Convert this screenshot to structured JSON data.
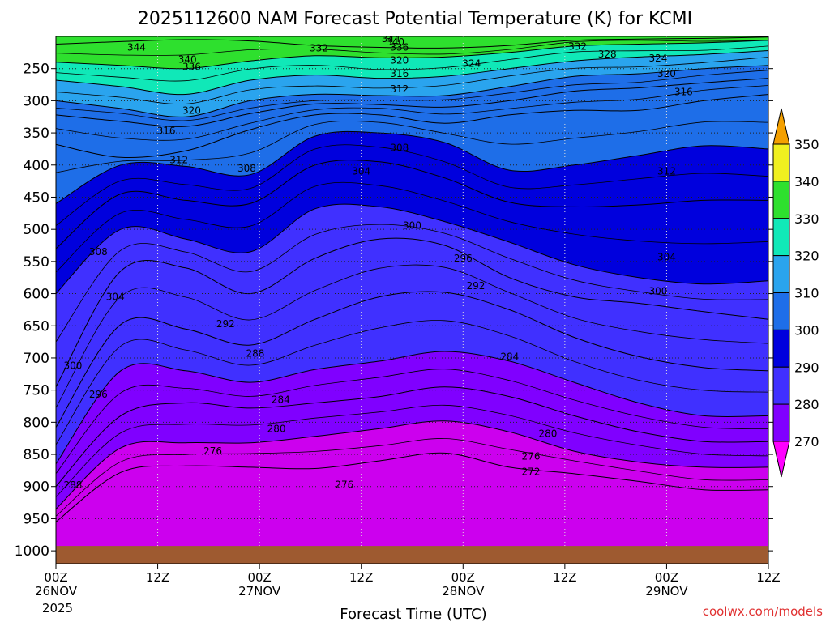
{
  "chart_data": {
    "type": "contour",
    "title": "2025112600 NAM Forecast Potential Temperature (K) for KCMI",
    "xlabel": "Forecast Time (UTC)",
    "ylabel": "",
    "credit": "coolwx.com/models",
    "year_label": "2025",
    "x_range_hours": [
      0,
      84
    ],
    "x_ticks": [
      {
        "hour": 0,
        "time": "00Z",
        "date": "26NOV"
      },
      {
        "hour": 12,
        "time": "12Z",
        "date": ""
      },
      {
        "hour": 24,
        "time": "00Z",
        "date": "27NOV"
      },
      {
        "hour": 36,
        "time": "12Z",
        "date": ""
      },
      {
        "hour": 48,
        "time": "00Z",
        "date": "28NOV"
      },
      {
        "hour": 60,
        "time": "12Z",
        "date": ""
      },
      {
        "hour": 72,
        "time": "00Z",
        "date": "29NOV"
      },
      {
        "hour": 84,
        "time": "12Z",
        "date": ""
      }
    ],
    "pressure_range_hpa": [
      200,
      1020
    ],
    "y_ticks": [
      "250",
      "300",
      "350",
      "400",
      "450",
      "500",
      "550",
      "600",
      "650",
      "700",
      "750",
      "800",
      "850",
      "900",
      "950",
      "1000"
    ],
    "colorbar": {
      "levels": [
        "270",
        "280",
        "290",
        "300",
        "310",
        "320",
        "330",
        "340",
        "350"
      ],
      "colors": [
        "#ff00ff",
        "#cc00ee",
        "#8000ff",
        "#4030ff",
        "#0000dd",
        "#1e6ee8",
        "#2aa4ee",
        "#10e8b8",
        "#2ee02e",
        "#f0f020",
        "#f4a000"
      ]
    },
    "contour_interval_K": 2,
    "ground_color": "#9e5a30",
    "isentropes": [
      {
        "theta": 344,
        "pressure_hpa": [
          212,
          208,
          205,
          207,
          214,
          217,
          218,
          214,
          206,
          204,
          203,
          201
        ]
      },
      {
        "theta": 336,
        "pressure_hpa": [
          240,
          245,
          250,
          238,
          230,
          233,
          232,
          225,
          215,
          212,
          210,
          206
        ]
      },
      {
        "theta": 328,
        "pressure_hpa": [
          268,
          278,
          290,
          268,
          260,
          265,
          262,
          250,
          238,
          232,
          228,
          222
        ]
      },
      {
        "theta": 320,
        "pressure_hpa": [
          300,
          312,
          325,
          300,
          290,
          292,
          292,
          278,
          262,
          258,
          250,
          245
        ]
      },
      {
        "theta": 316,
        "pressure_hpa": [
          322,
          332,
          340,
          320,
          305,
          306,
          310,
          300,
          285,
          280,
          272,
          265
        ]
      },
      {
        "theta": 312,
        "pressure_hpa": [
          368,
          388,
          378,
          345,
          322,
          322,
          335,
          322,
          315,
          315,
          300,
          290
        ]
      },
      {
        "theta": 308,
        "pressure_hpa": [
          460,
          400,
          402,
          415,
          355,
          350,
          365,
          408,
          400,
          385,
          370,
          375
        ]
      },
      {
        "theta": 304,
        "pressure_hpa": [
          530,
          445,
          455,
          460,
          400,
          395,
          420,
          458,
          465,
          462,
          455,
          455
        ]
      },
      {
        "theta": 300,
        "pressure_hpa": [
          600,
          500,
          515,
          535,
          468,
          465,
          488,
          520,
          555,
          575,
          585,
          580
        ]
      },
      {
        "theta": 296,
        "pressure_hpa": [
          745,
          565,
          560,
          600,
          545,
          515,
          525,
          575,
          605,
          615,
          628,
          640
        ]
      },
      {
        "theta": 292,
        "pressure_hpa": [
          808,
          648,
          655,
          680,
          640,
          605,
          598,
          625,
          668,
          698,
          715,
          720
        ]
      },
      {
        "theta": 288,
        "pressure_hpa": [
          865,
          720,
          720,
          738,
          718,
          705,
          690,
          705,
          738,
          770,
          790,
          790
        ]
      },
      {
        "theta": 284,
        "pressure_hpa": [
          900,
          790,
          770,
          778,
          770,
          760,
          745,
          760,
          790,
          815,
          830,
          830
        ]
      },
      {
        "theta": 280,
        "pressure_hpa": [
          935,
          840,
          832,
          832,
          822,
          810,
          798,
          815,
          845,
          862,
          870,
          870
        ]
      },
      {
        "theta": 276,
        "pressure_hpa": [
          955,
          878,
          868,
          870,
          872,
          860,
          848,
          870,
          880,
          892,
          905,
          905
        ]
      }
    ],
    "contour_labels": [
      {
        "text": "344",
        "hour": 9.5,
        "p": 217
      },
      {
        "text": "340",
        "hour": 15.5,
        "p": 236
      },
      {
        "text": "336",
        "hour": 16.0,
        "p": 247
      },
      {
        "text": "320",
        "hour": 16.0,
        "p": 315
      },
      {
        "text": "316",
        "hour": 13.0,
        "p": 347
      },
      {
        "text": "312",
        "hour": 14.5,
        "p": 392
      },
      {
        "text": "308",
        "hour": 5.0,
        "p": 535
      },
      {
        "text": "304",
        "hour": 7.0,
        "p": 605
      },
      {
        "text": "300",
        "hour": 2.0,
        "p": 712
      },
      {
        "text": "296",
        "hour": 5.0,
        "p": 757
      },
      {
        "text": "288",
        "hour": 2.0,
        "p": 898
      },
      {
        "text": "292",
        "hour": 20.0,
        "p": 647
      },
      {
        "text": "288",
        "hour": 23.5,
        "p": 693
      },
      {
        "text": "284",
        "hour": 26.5,
        "p": 765
      },
      {
        "text": "280",
        "hour": 26.0,
        "p": 810
      },
      {
        "text": "276",
        "hour": 18.5,
        "p": 845
      },
      {
        "text": "276",
        "hour": 34.0,
        "p": 897
      },
      {
        "text": "308",
        "hour": 22.5,
        "p": 405
      },
      {
        "text": "304",
        "hour": 36.0,
        "p": 410
      },
      {
        "text": "308",
        "hour": 40.5,
        "p": 373
      },
      {
        "text": "312",
        "hour": 40.5,
        "p": 282
      },
      {
        "text": "316",
        "hour": 40.5,
        "p": 258
      },
      {
        "text": "320",
        "hour": 40.5,
        "p": 237
      },
      {
        "text": "332",
        "hour": 31.0,
        "p": 218
      },
      {
        "text": "336",
        "hour": 40.5,
        "p": 217
      },
      {
        "text": "340",
        "hour": 40.0,
        "p": 209
      },
      {
        "text": "344",
        "hour": 39.5,
        "p": 204
      },
      {
        "text": "300",
        "hour": 42.0,
        "p": 494
      },
      {
        "text": "296",
        "hour": 48.0,
        "p": 545
      },
      {
        "text": "292",
        "hour": 49.5,
        "p": 588
      },
      {
        "text": "324",
        "hour": 49.0,
        "p": 242
      },
      {
        "text": "284",
        "hour": 53.5,
        "p": 698
      },
      {
        "text": "280",
        "hour": 58.0,
        "p": 818
      },
      {
        "text": "276",
        "hour": 56.0,
        "p": 853
      },
      {
        "text": "272",
        "hour": 56.0,
        "p": 877
      },
      {
        "text": "332",
        "hour": 61.5,
        "p": 216
      },
      {
        "text": "328",
        "hour": 65.0,
        "p": 228
      },
      {
        "text": "324",
        "hour": 71.0,
        "p": 234
      },
      {
        "text": "320",
        "hour": 72.0,
        "p": 258
      },
      {
        "text": "316",
        "hour": 74.0,
        "p": 286
      },
      {
        "text": "312",
        "hour": 72.0,
        "p": 410
      },
      {
        "text": "304",
        "hour": 72.0,
        "p": 543
      },
      {
        "text": "300",
        "hour": 71.0,
        "p": 596
      }
    ]
  }
}
